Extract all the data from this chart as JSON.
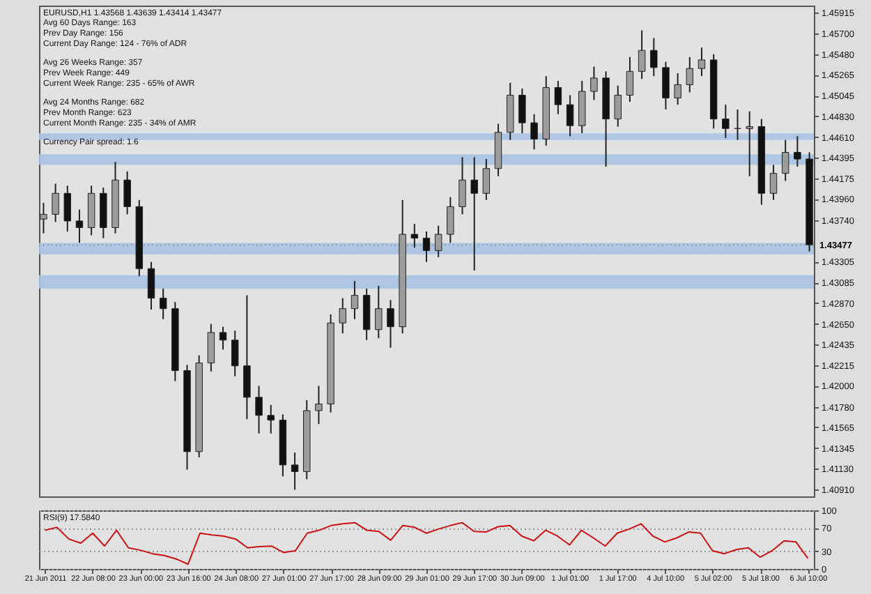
{
  "chart_data": [
    {
      "type": "candlestick",
      "title": "EURUSD,H1  1.43568 1.43639 1.43414 1.43477",
      "annotations": [
        "Avg 60 Days Range: 163",
        "Prev Day Range: 156",
        "Current Day Range: 124 - 76% of ADR",
        "Avg 26 Weeks Range: 357",
        "Prev Week Range: 449",
        "Current Week Range: 235 - 65% of AWR",
        "Avg 24 Months Range: 682",
        "Prev Month Range: 623",
        "Current Month Range: 235 - 34% of AMR",
        "Currency Pair spread: 1.6"
      ],
      "categories": [
        null,
        null,
        null,
        null,
        null,
        null,
        null,
        null,
        null,
        null,
        null,
        null,
        null,
        null,
        null,
        null,
        null,
        null,
        null,
        null,
        null,
        null,
        null,
        null,
        null,
        null,
        null,
        null,
        null,
        null,
        null,
        null,
        null,
        null,
        null,
        null,
        null,
        null,
        null,
        null,
        null,
        null,
        null,
        null,
        null,
        null,
        null,
        null,
        null,
        null,
        null,
        null,
        null,
        null,
        null,
        null,
        null,
        null,
        null,
        null,
        null,
        null,
        null,
        null,
        null
      ],
      "ohlc": [
        [
          1.4375,
          1.4392,
          1.436,
          1.438
        ],
        [
          1.438,
          1.4412,
          1.4372,
          1.4402
        ],
        [
          1.4402,
          1.441,
          1.4362,
          1.4373
        ],
        [
          1.4373,
          1.4385,
          1.435,
          1.4366
        ],
        [
          1.4366,
          1.441,
          1.4358,
          1.4402
        ],
        [
          1.4402,
          1.4408,
          1.4355,
          1.4366
        ],
        [
          1.4366,
          1.4435,
          1.436,
          1.4416
        ],
        [
          1.4416,
          1.4425,
          1.438,
          1.4388
        ],
        [
          1.4388,
          1.4395,
          1.4315,
          1.4323
        ],
        [
          1.4323,
          1.433,
          1.428,
          1.4292
        ],
        [
          1.4292,
          1.4302,
          1.427,
          1.4281
        ],
        [
          1.4281,
          1.4288,
          1.4205,
          1.4216
        ],
        [
          1.4216,
          1.4222,
          1.4112,
          1.4131
        ],
        [
          1.4131,
          1.4232,
          1.4125,
          1.4224
        ],
        [
          1.4224,
          1.4265,
          1.4215,
          1.4256
        ],
        [
          1.4256,
          1.4262,
          1.4238,
          1.4248
        ],
        [
          1.4248,
          1.4258,
          1.421,
          1.4221
        ],
        [
          1.4221,
          1.4295,
          1.4165,
          1.4188
        ],
        [
          1.4188,
          1.42,
          1.415,
          1.4169
        ],
        [
          1.4169,
          1.418,
          1.415,
          1.4164
        ],
        [
          1.4164,
          1.417,
          1.4105,
          1.4117
        ],
        [
          1.4117,
          1.413,
          1.4091,
          1.411
        ],
        [
          1.411,
          1.4185,
          1.4102,
          1.4174
        ],
        [
          1.4174,
          1.42,
          1.416,
          1.4181
        ],
        [
          1.4181,
          1.4275,
          1.4172,
          1.4266
        ],
        [
          1.4266,
          1.4292,
          1.4255,
          1.4281
        ],
        [
          1.4281,
          1.431,
          1.427,
          1.4295
        ],
        [
          1.4295,
          1.4302,
          1.4248,
          1.4259
        ],
        [
          1.4259,
          1.4305,
          1.425,
          1.4281
        ],
        [
          1.4281,
          1.429,
          1.424,
          1.4262
        ],
        [
          1.4262,
          1.4395,
          1.4255,
          1.4359
        ],
        [
          1.4359,
          1.437,
          1.4345,
          1.4355
        ],
        [
          1.4355,
          1.4362,
          1.433,
          1.4342
        ],
        [
          1.4342,
          1.4368,
          1.4335,
          1.4359
        ],
        [
          1.4359,
          1.4398,
          1.435,
          1.4388
        ],
        [
          1.4388,
          1.444,
          1.438,
          1.4416
        ],
        [
          1.4416,
          1.444,
          1.4321,
          1.4402
        ],
        [
          1.4402,
          1.4438,
          1.4395,
          1.4428
        ],
        [
          1.4428,
          1.4475,
          1.442,
          1.4466
        ],
        [
          1.4466,
          1.4518,
          1.4458,
          1.4505
        ],
        [
          1.4505,
          1.4512,
          1.4465,
          1.4476
        ],
        [
          1.4476,
          1.4485,
          1.4448,
          1.4459
        ],
        [
          1.4459,
          1.4525,
          1.4452,
          1.4513
        ],
        [
          1.4513,
          1.452,
          1.4485,
          1.4495
        ],
        [
          1.4495,
          1.4505,
          1.4462,
          1.4473
        ],
        [
          1.4473,
          1.452,
          1.4465,
          1.4509
        ],
        [
          1.4509,
          1.4535,
          1.45,
          1.4523
        ],
        [
          1.4523,
          1.453,
          1.443,
          1.448
        ],
        [
          1.448,
          1.4515,
          1.4472,
          1.4505
        ],
        [
          1.4505,
          1.4545,
          1.4498,
          1.453
        ],
        [
          1.453,
          1.4573,
          1.4522,
          1.4552
        ],
        [
          1.4552,
          1.4565,
          1.4525,
          1.4534
        ],
        [
          1.4534,
          1.454,
          1.449,
          1.4502
        ],
        [
          1.4502,
          1.4528,
          1.4495,
          1.4516
        ],
        [
          1.4516,
          1.4545,
          1.4508,
          1.4533
        ],
        [
          1.4533,
          1.4555,
          1.4525,
          1.4542
        ],
        [
          1.4542,
          1.4548,
          1.447,
          1.448
        ],
        [
          1.448,
          1.4495,
          1.446,
          1.447
        ],
        [
          1.447,
          1.449,
          1.4458,
          1.447
        ],
        [
          1.447,
          1.4488,
          1.442,
          1.4472
        ],
        [
          1.4472,
          1.448,
          1.439,
          1.4402
        ],
        [
          1.4402,
          1.4432,
          1.4395,
          1.4423
        ],
        [
          1.4423,
          1.4458,
          1.4415,
          1.4445
        ],
        [
          1.4445,
          1.4462,
          1.443,
          1.4438
        ],
        [
          1.4438,
          1.4445,
          1.4341,
          1.4348
        ]
      ],
      "ylim": [
        1.4084,
        1.4599
      ],
      "yticks": [
        {
          "value": 1.4091,
          "label": "1.40910"
        },
        {
          "value": 1.4113,
          "label": "1.41130"
        },
        {
          "value": 1.41345,
          "label": "1.41345"
        },
        {
          "value": 1.41565,
          "label": "1.41565"
        },
        {
          "value": 1.4178,
          "label": "1.41780"
        },
        {
          "value": 1.42,
          "label": "1.42000"
        },
        {
          "value": 1.42215,
          "label": "1.42215"
        },
        {
          "value": 1.42435,
          "label": "1.42435"
        },
        {
          "value": 1.4265,
          "label": "1.42650"
        },
        {
          "value": 1.4287,
          "label": "1.42870"
        },
        {
          "value": 1.43085,
          "label": "1.43085"
        },
        {
          "value": 1.43305,
          "label": "1.43305"
        },
        {
          "value": 1.4374,
          "label": "1.43740"
        },
        {
          "value": 1.4396,
          "label": "1.43960"
        },
        {
          "value": 1.44175,
          "label": "1.44175"
        },
        {
          "value": 1.44395,
          "label": "1.44395"
        },
        {
          "value": 1.4461,
          "label": "1.44610"
        },
        {
          "value": 1.4483,
          "label": "1.44830"
        },
        {
          "value": 1.45045,
          "label": "1.45045"
        },
        {
          "value": 1.45265,
          "label": "1.45265"
        },
        {
          "value": 1.4548,
          "label": "1.45480"
        },
        {
          "value": 1.457,
          "label": "1.45700"
        },
        {
          "value": 1.45915,
          "label": "1.45915"
        }
      ],
      "bands": [
        {
          "axis": "y",
          "from": 1.4432,
          "to": 1.4443,
          "color": "#a9c3e3"
        },
        {
          "axis": "y",
          "from": 1.4338,
          "to": 1.435,
          "color": "#a9c3e3"
        },
        {
          "axis": "y",
          "from": 1.4302,
          "to": 1.4316,
          "color": "#a9c3e3"
        },
        {
          "axis": "y",
          "from": 1.4458,
          "to": 1.4465,
          "color": "#a9c3e3"
        }
      ],
      "ref_lines": [
        {
          "axis": "y",
          "value": 1.43477,
          "label": "1.43477",
          "color": "#9a9a9a",
          "line_style": "dotted"
        }
      ],
      "tick_labels": "y"
    },
    {
      "type": "line",
      "title": "RSI(9) 17.5840",
      "categories": [
        "21 Jun 2011",
        null,
        null,
        null,
        "22 Jun 08:00",
        null,
        null,
        null,
        "23 Jun 00:00",
        null,
        null,
        null,
        "23 Jun 16:00",
        null,
        null,
        null,
        "24 Jun 08:00",
        null,
        null,
        null,
        "27 Jun 01:00",
        null,
        null,
        null,
        "27 Jun 17:00",
        null,
        null,
        null,
        "28 Jun 09:00",
        null,
        null,
        null,
        "29 Jun 01:00",
        null,
        null,
        null,
        "29 Jun 17:00",
        null,
        null,
        null,
        "30 Jun 09:00",
        null,
        null,
        null,
        "1 Jul 01:00",
        null,
        null,
        null,
        "1 Jul 17:00",
        null,
        null,
        null,
        "4 Jul 10:00",
        null,
        null,
        null,
        "5 Jul 02:00",
        null,
        null,
        null,
        "5 Jul 18:00",
        null,
        null,
        null,
        "6 Jul 10:00"
      ],
      "series": [
        {
          "color": "#cc1111",
          "values": [
            66,
            71,
            51,
            44,
            61,
            39,
            66,
            36,
            32,
            26,
            23,
            17,
            8,
            61,
            58,
            56,
            51,
            36,
            38,
            39,
            28,
            31,
            61,
            66,
            74,
            77,
            79,
            66,
            64,
            49,
            74,
            71,
            61,
            68,
            74,
            79,
            64,
            63,
            72,
            74,
            56,
            48,
            66,
            56,
            41,
            66,
            53,
            39,
            61,
            68,
            77,
            56,
            46,
            53,
            63,
            61,
            31,
            26,
            33,
            36,
            20,
            31,
            48,
            46,
            18
          ]
        }
      ],
      "ylim": [
        0,
        100
      ],
      "yticks": [
        0,
        30,
        70,
        100
      ],
      "grid": "y"
    }
  ]
}
